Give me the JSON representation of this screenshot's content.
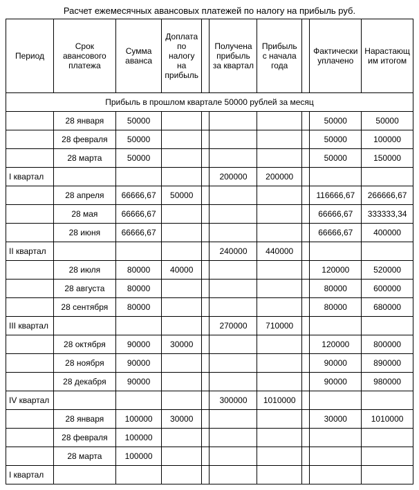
{
  "title": "Расчет ежемесячных авансовых платежей по налогу на прибыль   руб.",
  "headers": {
    "period": "Период",
    "date": "Срок авансового платежа",
    "amount": "Сумма аванса",
    "extra": "Доплата по налогу на прибыль",
    "narrow1": "",
    "profitq": "Получена прибыль за квартал",
    "profity": "Прибыль с начала года",
    "narrow2": "",
    "paid": "Фактически уплачено",
    "total": "Нарастающим итогом"
  },
  "subheader": "Прибыль в прошлом квартале 50000 рублей за месяц",
  "rows": [
    {
      "period": "",
      "date": "28 января",
      "amount": "50000",
      "extra": "",
      "n1": "",
      "profitq": "",
      "profity": "",
      "n2": "",
      "paid": "50000",
      "total": "50000"
    },
    {
      "period": "",
      "date": "28 февраля",
      "amount": "50000",
      "extra": "",
      "n1": "",
      "profitq": "",
      "profity": "",
      "n2": "",
      "paid": "50000",
      "total": "100000"
    },
    {
      "period": "",
      "date": "28 марта",
      "amount": "50000",
      "extra": "",
      "n1": "",
      "profitq": "",
      "profity": "",
      "n2": "",
      "paid": "50000",
      "total": "150000"
    },
    {
      "period": "I квартал",
      "date": "",
      "amount": "",
      "extra": "",
      "n1": "",
      "profitq": "200000",
      "profity": "200000",
      "n2": "",
      "paid": "",
      "total": ""
    },
    {
      "period": "",
      "date": "28 апреля",
      "amount": "66666,67",
      "extra": "50000",
      "n1": "",
      "profitq": "",
      "profity": "",
      "n2": "",
      "paid": "116666,67",
      "total": "266666,67"
    },
    {
      "period": "",
      "date": "28 мая",
      "amount": "66666,67",
      "extra": "",
      "n1": "",
      "profitq": "",
      "profity": "",
      "n2": "",
      "paid": "66666,67",
      "total": "333333,34"
    },
    {
      "period": "",
      "date": "28 июня",
      "amount": "66666,67",
      "extra": "",
      "n1": "",
      "profitq": "",
      "profity": "",
      "n2": "",
      "paid": "66666,67",
      "total": "400000"
    },
    {
      "period": "II квартал",
      "date": "",
      "amount": "",
      "extra": "",
      "n1": "",
      "profitq": "240000",
      "profity": "440000",
      "n2": "",
      "paid": "",
      "total": ""
    },
    {
      "period": "",
      "date": "28 июля",
      "amount": "80000",
      "extra": "40000",
      "n1": "",
      "profitq": "",
      "profity": "",
      "n2": "",
      "paid": "120000",
      "total": "520000"
    },
    {
      "period": "",
      "date": "28 августа",
      "amount": "80000",
      "extra": "",
      "n1": "",
      "profitq": "",
      "profity": "",
      "n2": "",
      "paid": "80000",
      "total": "600000"
    },
    {
      "period": "",
      "date": "28 сентября",
      "amount": "80000",
      "extra": "",
      "n1": "",
      "profitq": "",
      "profity": "",
      "n2": "",
      "paid": "80000",
      "total": "680000"
    },
    {
      "period": "III квартал",
      "date": "",
      "amount": "",
      "extra": "",
      "n1": "",
      "profitq": "270000",
      "profity": "710000",
      "n2": "",
      "paid": "",
      "total": ""
    },
    {
      "period": "",
      "date": "28 октября",
      "amount": "90000",
      "extra": "30000",
      "n1": "",
      "profitq": "",
      "profity": "",
      "n2": "",
      "paid": "120000",
      "total": "800000"
    },
    {
      "period": "",
      "date": "28 ноября",
      "amount": "90000",
      "extra": "",
      "n1": "",
      "profitq": "",
      "profity": "",
      "n2": "",
      "paid": "90000",
      "total": "890000"
    },
    {
      "period": "",
      "date": "28 декабря",
      "amount": "90000",
      "extra": "",
      "n1": "",
      "profitq": "",
      "profity": "",
      "n2": "",
      "paid": "90000",
      "total": "980000"
    },
    {
      "period": "IV квартал",
      "date": "",
      "amount": "",
      "extra": "",
      "n1": "",
      "profitq": "300000",
      "profity": "1010000",
      "n2": "",
      "paid": "",
      "total": ""
    },
    {
      "period": "",
      "date": "28 января",
      "amount": "100000",
      "extra": "30000",
      "n1": "",
      "profitq": "",
      "profity": "",
      "n2": "",
      "paid": "30000",
      "total": "1010000"
    },
    {
      "period": "",
      "date": "28 февраля",
      "amount": "100000",
      "extra": "",
      "n1": "",
      "profitq": "",
      "profity": "",
      "n2": "",
      "paid": "",
      "total": ""
    },
    {
      "period": "",
      "date": "28 марта",
      "amount": "100000",
      "extra": "",
      "n1": "",
      "profitq": "",
      "profity": "",
      "n2": "",
      "paid": "",
      "total": ""
    },
    {
      "period": "I квартал",
      "date": "",
      "amount": "",
      "extra": "",
      "n1": "",
      "profitq": "",
      "profity": "",
      "n2": "",
      "paid": "",
      "total": ""
    }
  ]
}
